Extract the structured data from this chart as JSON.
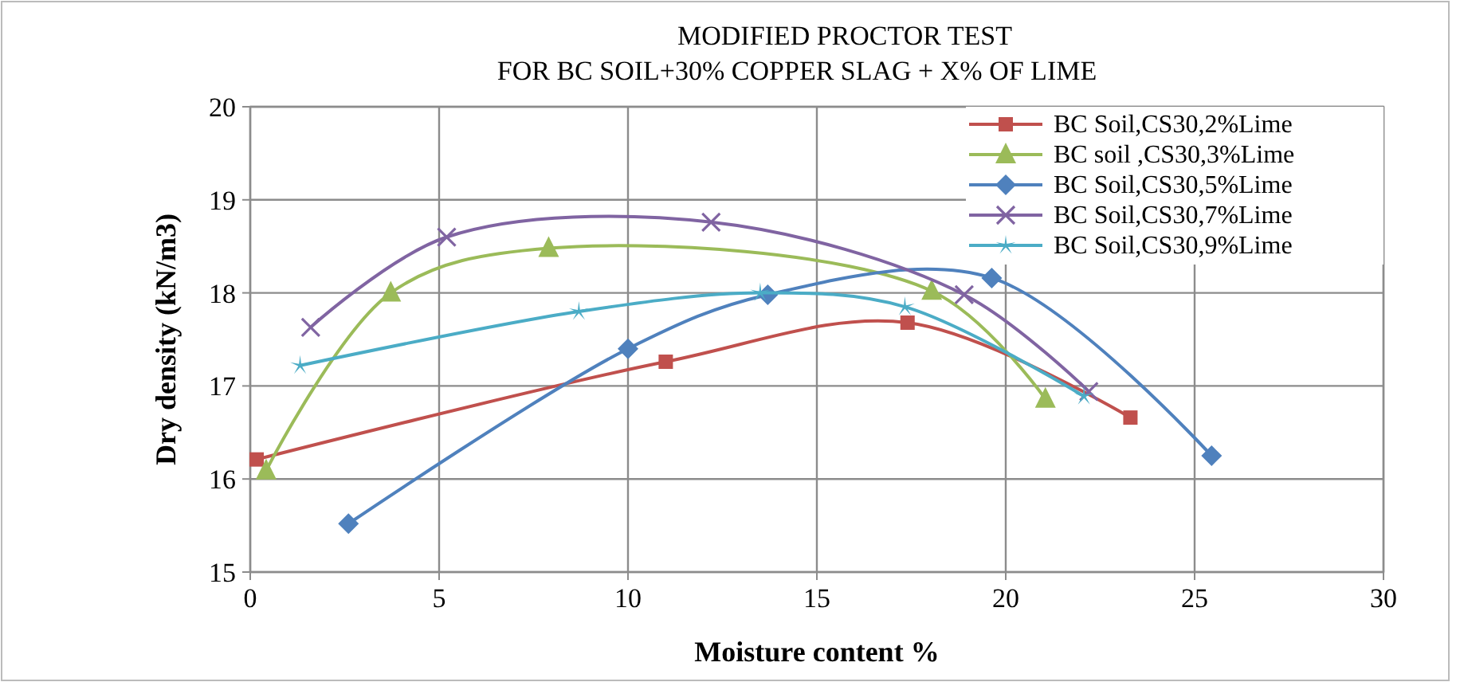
{
  "chart_data": {
    "type": "line",
    "title": "MODIFIED PROCTOR TEST",
    "subtitle": "FOR BC SOIL+30% COPPER SLAG + X% OF LIME",
    "xlabel": "Moisture content %",
    "ylabel": "Dry density (kN/m3)",
    "xlim": [
      0,
      30
    ],
    "xticks": [
      0,
      5,
      10,
      15,
      20,
      25,
      30
    ],
    "ylim": [
      15,
      20
    ],
    "yticks": [
      15,
      16,
      17,
      18,
      19,
      20
    ],
    "grid": true,
    "legend": "top right",
    "series": [
      {
        "name": "BC Soil,CS30,2%Lime",
        "color": "#c0504d",
        "marker": "square",
        "x": [
          0.17,
          11.0,
          17.4,
          23.3
        ],
        "values": [
          16.21,
          17.26,
          17.68,
          16.66
        ]
      },
      {
        "name": "BC soil ,CS30,3%Lime",
        "color": "#9bbb59",
        "marker": "triangle",
        "x": [
          0.42,
          3.72,
          7.9,
          18.04,
          21.05
        ],
        "values": [
          16.09,
          18.0,
          18.48,
          18.02,
          16.86
        ]
      },
      {
        "name": "BC Soil,CS30,5%Lime",
        "color": "#4f81bd",
        "marker": "diamond",
        "x": [
          2.6,
          10.0,
          13.7,
          19.63,
          25.45
        ],
        "values": [
          15.52,
          17.4,
          17.98,
          18.16,
          16.25
        ]
      },
      {
        "name": "BC Soil,CS30,7%Lime",
        "color": "#8064a2",
        "marker": "cross",
        "x": [
          1.6,
          5.2,
          12.2,
          18.9,
          22.2
        ],
        "values": [
          17.63,
          18.6,
          18.76,
          17.98,
          16.94
        ]
      },
      {
        "name": "BC Soil,CS30,9%Lime",
        "color": "#4bacc6",
        "marker": "star",
        "x": [
          1.32,
          8.7,
          13.5,
          17.33,
          22.07
        ],
        "values": [
          17.22,
          17.8,
          18.0,
          17.85,
          16.89
        ]
      }
    ]
  }
}
